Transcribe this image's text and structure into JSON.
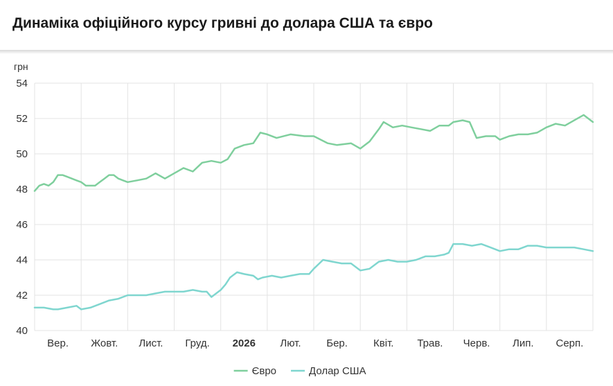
{
  "header": {
    "title": "Динаміка офіційного курсу гривні до долара США та євро"
  },
  "colors": {
    "euro": "#7fcf9d",
    "usd": "#7fd6cf",
    "grid": "#e3e3e3",
    "axis_text": "#333333"
  },
  "chart_data": {
    "type": "line",
    "title": "Динаміка офіційного курсу гривні до долара США та євро",
    "ylabel": "грн",
    "xlabel": "",
    "ylim": [
      40,
      54
    ],
    "yticks": [
      40,
      42,
      44,
      46,
      48,
      50,
      52,
      54
    ],
    "x_ticks": [
      {
        "label": "Вер.",
        "pos": 0.5,
        "bold": false
      },
      {
        "label": "Жовт.",
        "pos": 1.5,
        "bold": false
      },
      {
        "label": "Лист.",
        "pos": 2.5,
        "bold": false
      },
      {
        "label": "Груд.",
        "pos": 3.5,
        "bold": false
      },
      {
        "label": "2026",
        "pos": 4.5,
        "bold": true
      },
      {
        "label": "Лют.",
        "pos": 5.5,
        "bold": false
      },
      {
        "label": "Бер.",
        "pos": 6.5,
        "bold": false
      },
      {
        "label": "Квіт.",
        "pos": 7.5,
        "bold": false
      },
      {
        "label": "Трав.",
        "pos": 8.5,
        "bold": false
      },
      {
        "label": "Черв.",
        "pos": 9.5,
        "bold": false
      },
      {
        "label": "Лип.",
        "pos": 10.5,
        "bold": false
      },
      {
        "label": "Серп.",
        "pos": 11.5,
        "bold": false
      }
    ],
    "xlim": [
      0,
      12
    ],
    "grid": true,
    "legend_position": "bottom-center",
    "series": [
      {
        "name": "Євро",
        "key": "euro",
        "points": [
          [
            0.0,
            47.9
          ],
          [
            0.1,
            48.2
          ],
          [
            0.2,
            48.3
          ],
          [
            0.3,
            48.2
          ],
          [
            0.4,
            48.4
          ],
          [
            0.5,
            48.8
          ],
          [
            0.6,
            48.8
          ],
          [
            0.7,
            48.7
          ],
          [
            0.8,
            48.6
          ],
          [
            0.9,
            48.5
          ],
          [
            1.0,
            48.4
          ],
          [
            1.1,
            48.2
          ],
          [
            1.2,
            48.2
          ],
          [
            1.3,
            48.2
          ],
          [
            1.4,
            48.4
          ],
          [
            1.5,
            48.6
          ],
          [
            1.6,
            48.8
          ],
          [
            1.7,
            48.8
          ],
          [
            1.8,
            48.6
          ],
          [
            1.9,
            48.5
          ],
          [
            2.0,
            48.4
          ],
          [
            2.2,
            48.5
          ],
          [
            2.4,
            48.6
          ],
          [
            2.6,
            48.9
          ],
          [
            2.8,
            48.6
          ],
          [
            3.0,
            48.9
          ],
          [
            3.2,
            49.2
          ],
          [
            3.4,
            49.0
          ],
          [
            3.6,
            49.5
          ],
          [
            3.8,
            49.6
          ],
          [
            4.0,
            49.5
          ],
          [
            4.15,
            49.7
          ],
          [
            4.3,
            50.3
          ],
          [
            4.5,
            50.5
          ],
          [
            4.7,
            50.6
          ],
          [
            4.85,
            51.2
          ],
          [
            5.0,
            51.1
          ],
          [
            5.2,
            50.9
          ],
          [
            5.5,
            51.1
          ],
          [
            5.8,
            51.0
          ],
          [
            6.0,
            51.0
          ],
          [
            6.3,
            50.6
          ],
          [
            6.5,
            50.5
          ],
          [
            6.8,
            50.6
          ],
          [
            7.0,
            50.3
          ],
          [
            7.2,
            50.7
          ],
          [
            7.4,
            51.4
          ],
          [
            7.5,
            51.8
          ],
          [
            7.7,
            51.5
          ],
          [
            7.9,
            51.6
          ],
          [
            8.1,
            51.5
          ],
          [
            8.3,
            51.4
          ],
          [
            8.5,
            51.3
          ],
          [
            8.7,
            51.6
          ],
          [
            8.9,
            51.6
          ],
          [
            9.0,
            51.8
          ],
          [
            9.2,
            51.9
          ],
          [
            9.35,
            51.8
          ],
          [
            9.5,
            50.9
          ],
          [
            9.7,
            51.0
          ],
          [
            9.9,
            51.0
          ],
          [
            10.0,
            50.8
          ],
          [
            10.2,
            51.0
          ],
          [
            10.4,
            51.1
          ],
          [
            10.6,
            51.1
          ],
          [
            10.8,
            51.2
          ],
          [
            11.0,
            51.5
          ],
          [
            11.2,
            51.7
          ],
          [
            11.4,
            51.6
          ],
          [
            11.6,
            51.9
          ],
          [
            11.8,
            52.2
          ],
          [
            12.0,
            51.8
          ]
        ]
      },
      {
        "name": "Долар США",
        "key": "usd",
        "points": [
          [
            0.0,
            41.3
          ],
          [
            0.2,
            41.3
          ],
          [
            0.4,
            41.2
          ],
          [
            0.5,
            41.2
          ],
          [
            0.7,
            41.3
          ],
          [
            0.9,
            41.4
          ],
          [
            1.0,
            41.2
          ],
          [
            1.2,
            41.3
          ],
          [
            1.4,
            41.5
          ],
          [
            1.6,
            41.7
          ],
          [
            1.8,
            41.8
          ],
          [
            2.0,
            42.0
          ],
          [
            2.2,
            42.0
          ],
          [
            2.4,
            42.0
          ],
          [
            2.6,
            42.1
          ],
          [
            2.8,
            42.2
          ],
          [
            3.0,
            42.2
          ],
          [
            3.2,
            42.2
          ],
          [
            3.4,
            42.3
          ],
          [
            3.6,
            42.2
          ],
          [
            3.7,
            42.2
          ],
          [
            3.8,
            41.9
          ],
          [
            4.0,
            42.3
          ],
          [
            4.1,
            42.6
          ],
          [
            4.2,
            43.0
          ],
          [
            4.35,
            43.3
          ],
          [
            4.5,
            43.2
          ],
          [
            4.7,
            43.1
          ],
          [
            4.8,
            42.9
          ],
          [
            4.9,
            43.0
          ],
          [
            5.1,
            43.1
          ],
          [
            5.3,
            43.0
          ],
          [
            5.5,
            43.1
          ],
          [
            5.7,
            43.2
          ],
          [
            5.9,
            43.2
          ],
          [
            6.0,
            43.5
          ],
          [
            6.2,
            44.0
          ],
          [
            6.4,
            43.9
          ],
          [
            6.6,
            43.8
          ],
          [
            6.8,
            43.8
          ],
          [
            7.0,
            43.4
          ],
          [
            7.2,
            43.5
          ],
          [
            7.4,
            43.9
          ],
          [
            7.6,
            44.0
          ],
          [
            7.8,
            43.9
          ],
          [
            8.0,
            43.9
          ],
          [
            8.2,
            44.0
          ],
          [
            8.4,
            44.2
          ],
          [
            8.6,
            44.2
          ],
          [
            8.8,
            44.3
          ],
          [
            8.9,
            44.4
          ],
          [
            9.0,
            44.9
          ],
          [
            9.2,
            44.9
          ],
          [
            9.4,
            44.8
          ],
          [
            9.6,
            44.9
          ],
          [
            9.8,
            44.7
          ],
          [
            10.0,
            44.5
          ],
          [
            10.2,
            44.6
          ],
          [
            10.4,
            44.6
          ],
          [
            10.6,
            44.8
          ],
          [
            10.8,
            44.8
          ],
          [
            11.0,
            44.7
          ],
          [
            11.2,
            44.7
          ],
          [
            11.4,
            44.7
          ],
          [
            11.6,
            44.7
          ],
          [
            11.8,
            44.6
          ],
          [
            12.0,
            44.5
          ]
        ]
      }
    ]
  }
}
